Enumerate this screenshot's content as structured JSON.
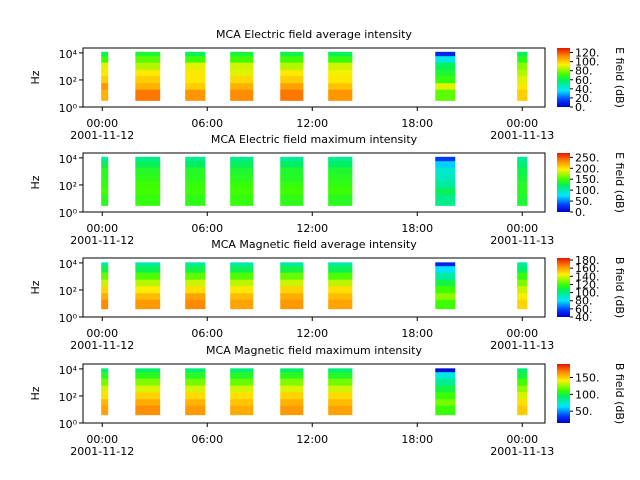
{
  "chart_data": [
    {
      "type": "heatmap",
      "title": "MCA  Electric field average intensity",
      "ylabel": "Hz",
      "colorbar_label": "E field (dB)",
      "xlim": [
        -1.1,
        25.3
      ],
      "ylim": [
        1,
        23000
      ],
      "log_y": true,
      "xticks": [
        {
          "value": 0,
          "label": "00:00"
        },
        {
          "value": 6,
          "label": "06:00"
        },
        {
          "value": 12,
          "label": "12:00"
        },
        {
          "value": 18,
          "label": "18:00"
        },
        {
          "value": 24,
          "label": "00:00"
        }
      ],
      "xtick_dates": [
        {
          "value": 0,
          "label": "2001-11-12"
        },
        {
          "value": 24,
          "label": "2001-11-13"
        }
      ],
      "yticks": [
        {
          "value": 1,
          "label": "10⁰"
        },
        {
          "value": 100,
          "label": "10²"
        },
        {
          "value": 10000,
          "label": "10⁴"
        }
      ],
      "clim": [
        0,
        130
      ],
      "cticks": [
        {
          "value": 0,
          "label": "0."
        },
        {
          "value": 20,
          "label": "20."
        },
        {
          "value": 40,
          "label": "40."
        },
        {
          "value": 60,
          "label": "60."
        },
        {
          "value": 80,
          "label": "80."
        },
        {
          "value": 100,
          "label": "100."
        },
        {
          "value": 120,
          "label": "120."
        }
      ],
      "time_ranges": [
        [
          -0.06,
          0.34
        ],
        [
          1.89,
          3.31
        ],
        [
          4.74,
          5.89
        ],
        [
          7.31,
          8.63
        ],
        [
          10.17,
          11.49
        ],
        [
          12.91,
          14.29
        ],
        [
          19.03,
          20.17
        ],
        [
          23.71,
          24.29
        ]
      ],
      "freq_bins": [
        3,
        20,
        60,
        200,
        600,
        2000,
        6000,
        12000
      ],
      "z": [
        [
          105,
          110,
          100,
          95,
          90,
          70,
          62
        ],
        [
          115,
          105,
          100,
          95,
          85,
          75,
          65
        ],
        [
          110,
          100,
          95,
          95,
          90,
          72,
          60
        ],
        [
          112,
          105,
          98,
          90,
          88,
          72,
          64
        ],
        [
          115,
          108,
          100,
          95,
          85,
          72,
          62
        ],
        [
          110,
          102,
          95,
          92,
          88,
          70,
          60
        ],
        [
          75,
          90,
          70,
          65,
          60,
          40,
          10
        ],
        [
          100,
          95,
          90,
          85,
          80,
          68,
          60
        ]
      ]
    },
    {
      "type": "heatmap",
      "title": "MCA  Electric field maximum intensity",
      "ylabel": "Hz",
      "colorbar_label": "E field (dB)",
      "xlim": [
        -1.1,
        25.3
      ],
      "ylim": [
        1,
        23000
      ],
      "log_y": true,
      "xticks": [
        {
          "value": 0,
          "label": "00:00"
        },
        {
          "value": 6,
          "label": "06:00"
        },
        {
          "value": 12,
          "label": "12:00"
        },
        {
          "value": 18,
          "label": "18:00"
        },
        {
          "value": 24,
          "label": "00:00"
        }
      ],
      "xtick_dates": [
        {
          "value": 0,
          "label": "2001-11-12"
        },
        {
          "value": 24,
          "label": "2001-11-13"
        }
      ],
      "yticks": [
        {
          "value": 1,
          "label": "10⁰"
        },
        {
          "value": 100,
          "label": "10²"
        },
        {
          "value": 10000,
          "label": "10⁴"
        }
      ],
      "clim": [
        0,
        270
      ],
      "cticks": [
        {
          "value": 0,
          "label": "0."
        },
        {
          "value": 50,
          "label": "50."
        },
        {
          "value": 100,
          "label": "100."
        },
        {
          "value": 150,
          "label": "150."
        },
        {
          "value": 200,
          "label": "200."
        },
        {
          "value": 250,
          "label": "250."
        }
      ],
      "time_ranges": [
        [
          -0.06,
          0.34
        ],
        [
          1.89,
          3.31
        ],
        [
          4.74,
          5.89
        ],
        [
          7.31,
          8.63
        ],
        [
          10.17,
          11.49
        ],
        [
          12.91,
          14.29
        ],
        [
          19.03,
          20.17
        ],
        [
          23.71,
          24.29
        ]
      ],
      "freq_bins": [
        3,
        20,
        60,
        200,
        600,
        2000,
        6000,
        12000
      ],
      "z": [
        [
          140,
          150,
          145,
          140,
          140,
          125,
          105
        ],
        [
          145,
          150,
          148,
          142,
          138,
          125,
          110
        ],
        [
          142,
          148,
          145,
          140,
          138,
          122,
          108
        ],
        [
          145,
          150,
          146,
          140,
          135,
          124,
          110
        ],
        [
          142,
          150,
          145,
          138,
          136,
          122,
          106
        ],
        [
          140,
          148,
          144,
          140,
          136,
          122,
          108
        ],
        [
          110,
          125,
          105,
          95,
          90,
          70,
          30
        ],
        [
          135,
          140,
          138,
          132,
          128,
          118,
          105
        ]
      ]
    },
    {
      "type": "heatmap",
      "title": "MCA  Magnetic field average intensity",
      "ylabel": "Hz",
      "colorbar_label": "B field (dB)",
      "xlim": [
        -1.1,
        25.3
      ],
      "ylim": [
        1,
        23000
      ],
      "log_y": true,
      "xticks": [
        {
          "value": 0,
          "label": "00:00"
        },
        {
          "value": 6,
          "label": "06:00"
        },
        {
          "value": 12,
          "label": "12:00"
        },
        {
          "value": 18,
          "label": "18:00"
        },
        {
          "value": 24,
          "label": "00:00"
        }
      ],
      "xtick_dates": [
        {
          "value": 0,
          "label": "2001-11-12"
        },
        {
          "value": 24,
          "label": "2001-11-13"
        }
      ],
      "yticks": [
        {
          "value": 1,
          "label": "10⁰"
        },
        {
          "value": 100,
          "label": "10²"
        },
        {
          "value": 10000,
          "label": "10⁴"
        }
      ],
      "clim": [
        40,
        185
      ],
      "cticks": [
        {
          "value": 40,
          "label": "40."
        },
        {
          "value": 60,
          "label": "60."
        },
        {
          "value": 80,
          "label": "80."
        },
        {
          "value": 100,
          "label": "100."
        },
        {
          "value": 120,
          "label": "120."
        },
        {
          "value": 140,
          "label": "140."
        },
        {
          "value": 160,
          "label": "160."
        },
        {
          "value": 180,
          "label": "180."
        }
      ],
      "time_ranges": [
        [
          -0.06,
          0.34
        ],
        [
          1.89,
          3.31
        ],
        [
          4.74,
          5.89
        ],
        [
          7.31,
          8.63
        ],
        [
          10.17,
          11.49
        ],
        [
          12.91,
          14.29
        ],
        [
          19.03,
          20.17
        ],
        [
          23.71,
          24.29
        ]
      ],
      "freq_bins": [
        4,
        20,
        60,
        200,
        600,
        2000,
        6000,
        11000
      ],
      "z": [
        [
          165,
          158,
          150,
          138,
          125,
          110,
          95
        ],
        [
          162,
          155,
          145,
          135,
          122,
          108,
          95
        ],
        [
          165,
          160,
          148,
          138,
          124,
          110,
          96
        ],
        [
          160,
          155,
          146,
          136,
          122,
          108,
          94
        ],
        [
          162,
          158,
          150,
          138,
          125,
          110,
          95
        ],
        [
          160,
          155,
          148,
          136,
          122,
          108,
          95
        ],
        [
          120,
          130,
          120,
          110,
          95,
          80,
          50
        ],
        [
          150,
          145,
          138,
          128,
          118,
          105,
          95
        ]
      ]
    },
    {
      "type": "heatmap",
      "title": "MCA  Magnetic field maximum intensity",
      "ylabel": "Hz",
      "colorbar_label": "B field (dB)",
      "xlim": [
        -1.1,
        25.3
      ],
      "ylim": [
        1,
        23000
      ],
      "log_y": true,
      "xticks": [
        {
          "value": 0,
          "label": "00:00"
        },
        {
          "value": 6,
          "label": "06:00"
        },
        {
          "value": 12,
          "label": "12:00"
        },
        {
          "value": 18,
          "label": "18:00"
        },
        {
          "value": 24,
          "label": "00:00"
        }
      ],
      "xtick_dates": [
        {
          "value": 0,
          "label": "2001-11-12"
        },
        {
          "value": 24,
          "label": "2001-11-13"
        }
      ],
      "yticks": [
        {
          "value": 1,
          "label": "10⁰"
        },
        {
          "value": 100,
          "label": "10²"
        },
        {
          "value": 10000,
          "label": "10⁴"
        }
      ],
      "clim": [
        15,
        190
      ],
      "cticks": [
        {
          "value": 50,
          "label": "50."
        },
        {
          "value": 100,
          "label": "100."
        },
        {
          "value": 150,
          "label": "150."
        }
      ],
      "time_ranges": [
        [
          -0.06,
          0.34
        ],
        [
          1.89,
          3.31
        ],
        [
          4.74,
          5.89
        ],
        [
          7.31,
          8.63
        ],
        [
          10.17,
          11.49
        ],
        [
          12.91,
          14.29
        ],
        [
          19.03,
          20.17
        ],
        [
          23.71,
          24.29
        ]
      ],
      "freq_bins": [
        4,
        20,
        60,
        200,
        600,
        2000,
        6000,
        11000
      ],
      "z": [
        [
          160,
          155,
          145,
          135,
          120,
          105,
          90
        ],
        [
          165,
          158,
          148,
          136,
          122,
          106,
          92
        ],
        [
          162,
          156,
          146,
          135,
          120,
          105,
          90
        ],
        [
          158,
          152,
          145,
          134,
          118,
          104,
          90
        ],
        [
          162,
          156,
          148,
          136,
          122,
          106,
          92
        ],
        [
          160,
          154,
          146,
          134,
          120,
          104,
          90
        ],
        [
          110,
          120,
          110,
          100,
          85,
          70,
          20
        ],
        [
          150,
          145,
          135,
          125,
          112,
          100,
          90
        ]
      ]
    }
  ]
}
